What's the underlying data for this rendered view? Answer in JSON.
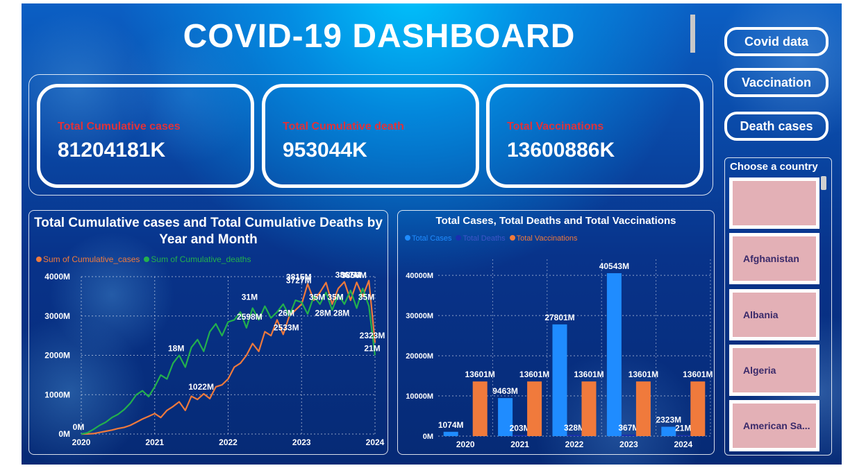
{
  "header": {
    "title": "COVID-19 DASHBOARD"
  },
  "nav": {
    "covid_data": "Covid data",
    "vaccination": "Vaccination",
    "death_cases": "Death cases"
  },
  "kpis": [
    {
      "label": "Total Cumulative cases",
      "value": "81204181K"
    },
    {
      "label": "Total Cumulative death",
      "value": "953044K"
    },
    {
      "label": "Total Vaccinations",
      "value": "13600886K"
    }
  ],
  "slicer": {
    "heading": "Choose a country",
    "items": [
      "",
      "Afghanistan",
      "Albania",
      "Algeria",
      "American Sa..."
    ]
  },
  "colors": {
    "cases": "#f07a3c",
    "deaths": "#23b04d",
    "bar_cases": "#1f8cff",
    "bar_deaths": "#1a2fb0",
    "bar_vacc": "#f07a3c",
    "kpi_label": "#e0323a"
  },
  "chart_data": [
    {
      "type": "line",
      "title": "Total Cumulative cases and Total Cumulative Deaths by Year and Month",
      "xlabel": "",
      "ylabel": "",
      "x_ticks": [
        "2020",
        "2021",
        "2022",
        "2023",
        "2024"
      ],
      "x_range": [
        2020,
        2024
      ],
      "y_ticks": [
        "0M",
        "1000M",
        "2000M",
        "3000M",
        "4000M"
      ],
      "ylim": [
        0,
        4000
      ],
      "legend_position": "top-left",
      "series": [
        {
          "name": "Sum of Cumulative_cases",
          "color": "#f07a3c",
          "x": [
            2020.0,
            2020.083,
            2020.167,
            2020.25,
            2020.333,
            2020.417,
            2020.5,
            2020.583,
            2020.667,
            2020.75,
            2020.833,
            2020.917,
            2021.0,
            2021.083,
            2021.167,
            2021.25,
            2021.333,
            2021.417,
            2021.5,
            2021.583,
            2021.667,
            2021.75,
            2021.833,
            2021.917,
            2022.0,
            2022.083,
            2022.167,
            2022.25,
            2022.333,
            2022.417,
            2022.5,
            2022.583,
            2022.667,
            2022.75,
            2022.833,
            2022.917,
            2023.0,
            2023.083,
            2023.167,
            2023.25,
            2023.333,
            2023.417,
            2023.5,
            2023.583,
            2023.667,
            2023.75,
            2023.833,
            2023.917,
            2024.0
          ],
          "y": [
            0,
            2,
            10,
            40,
            70,
            100,
            140,
            170,
            220,
            300,
            380,
            450,
            520,
            420,
            600,
            700,
            820,
            600,
            960,
            880,
            1022,
            900,
            1200,
            1250,
            1400,
            1700,
            1800,
            2000,
            2300,
            2100,
            2600,
            2500,
            2900,
            2533,
            3000,
            3150,
            3300,
            3815,
            3400,
            3600,
            3850,
            3300,
            3700,
            3867,
            3400,
            3856,
            3500,
            3900,
            2323
          ]
        },
        {
          "name": "Sum of Cumulative_deaths",
          "color": "#23b04d",
          "x": [
            2020.0,
            2020.083,
            2020.167,
            2020.25,
            2020.333,
            2020.417,
            2020.5,
            2020.583,
            2020.667,
            2020.75,
            2020.833,
            2020.917,
            2021.0,
            2021.083,
            2021.167,
            2021.25,
            2021.333,
            2021.417,
            2021.5,
            2021.583,
            2021.667,
            2021.75,
            2021.833,
            2021.917,
            2022.0,
            2022.083,
            2022.167,
            2022.25,
            2022.333,
            2022.417,
            2022.5,
            2022.583,
            2022.667,
            2022.75,
            2022.833,
            2022.917,
            2023.0,
            2023.083,
            2023.167,
            2023.25,
            2023.333,
            2023.417,
            2023.5,
            2023.583,
            2023.667,
            2023.75,
            2023.833,
            2023.917,
            2024.0
          ],
          "y": [
            0,
            30,
            120,
            220,
            300,
            420,
            500,
            620,
            780,
            1000,
            1100,
            950,
            1200,
            1500,
            1400,
            1800,
            2000,
            1700,
            2200,
            2400,
            2100,
            2600,
            2800,
            2500,
            2850,
            2900,
            3100,
            2700,
            3200,
            2900,
            3250,
            2950,
            3100,
            3300,
            3000,
            3400,
            3350,
            3050,
            3500,
            3300,
            3600,
            3150,
            3550,
            3300,
            3650,
            3200,
            3700,
            3250,
            2000
          ]
        }
      ],
      "data_labels": [
        {
          "series": "deaths",
          "x": 2020.0,
          "y": 0,
          "text": "0M"
        },
        {
          "series": "deaths",
          "x": 2021.33,
          "y": 2000,
          "text": "18M"
        },
        {
          "series": "cases",
          "x": 2021.67,
          "y": 1022,
          "text": "1022M"
        },
        {
          "series": "deaths",
          "x": 2022.33,
          "y": 3300,
          "text": "31M"
        },
        {
          "series": "deaths",
          "x": 2022.33,
          "y": 2800,
          "text": "2598M"
        },
        {
          "series": "deaths",
          "x": 2022.83,
          "y": 2900,
          "text": "26M"
        },
        {
          "series": "cases",
          "x": 2022.83,
          "y": 2533,
          "text": "2533M"
        },
        {
          "series": "cases",
          "x": 2023.0,
          "y": 3815,
          "text": "3815M"
        },
        {
          "series": "cases",
          "x": 2023.0,
          "y": 3727,
          "text": "3727M"
        },
        {
          "series": "deaths",
          "x": 2023.25,
          "y": 3300,
          "text": "35M"
        },
        {
          "series": "deaths",
          "x": 2023.5,
          "y": 3300,
          "text": "35M"
        },
        {
          "series": "cases",
          "x": 2023.33,
          "y": 2900,
          "text": "28M"
        },
        {
          "series": "cases",
          "x": 2023.58,
          "y": 2900,
          "text": "28M"
        },
        {
          "series": "cases",
          "x": 2023.67,
          "y": 3867,
          "text": "3867M"
        },
        {
          "series": "cases",
          "x": 2023.75,
          "y": 3856,
          "text": "3856M"
        },
        {
          "series": "deaths",
          "x": 2023.92,
          "y": 3300,
          "text": "35M"
        },
        {
          "series": "cases",
          "x": 2024.0,
          "y": 2323,
          "text": "2323M"
        },
        {
          "series": "deaths",
          "x": 2024.0,
          "y": 2000,
          "text": "21M"
        }
      ]
    },
    {
      "type": "bar",
      "title": "Total Cases, Total Deaths and Total Vaccinations",
      "xlabel": "",
      "ylabel": "",
      "categories": [
        "2020",
        "2021",
        "2022",
        "2023",
        "2024"
      ],
      "y_ticks": [
        "0M",
        "10000M",
        "20000M",
        "30000M",
        "40000M"
      ],
      "ylim": [
        0,
        44000
      ],
      "legend_position": "top-left",
      "series": [
        {
          "name": "Total Cases",
          "color": "#1f8cff",
          "values": [
            1074,
            9463,
            27801,
            40543,
            2323
          ],
          "labels": [
            "1074M",
            "9463M",
            "27801M",
            "40543M",
            "2323M"
          ]
        },
        {
          "name": "Total Deaths",
          "color": "#1a2fb0",
          "values": [
            0,
            203,
            328,
            367,
            21
          ],
          "labels": [
            "",
            "203M",
            "328M",
            "367M",
            "21M"
          ]
        },
        {
          "name": "Total Vaccinations",
          "color": "#f07a3c",
          "values": [
            13601,
            13601,
            13601,
            13601,
            13601
          ],
          "labels": [
            "13601M",
            "13601M",
            "13601M",
            "13601M",
            "13601M"
          ]
        }
      ]
    }
  ]
}
